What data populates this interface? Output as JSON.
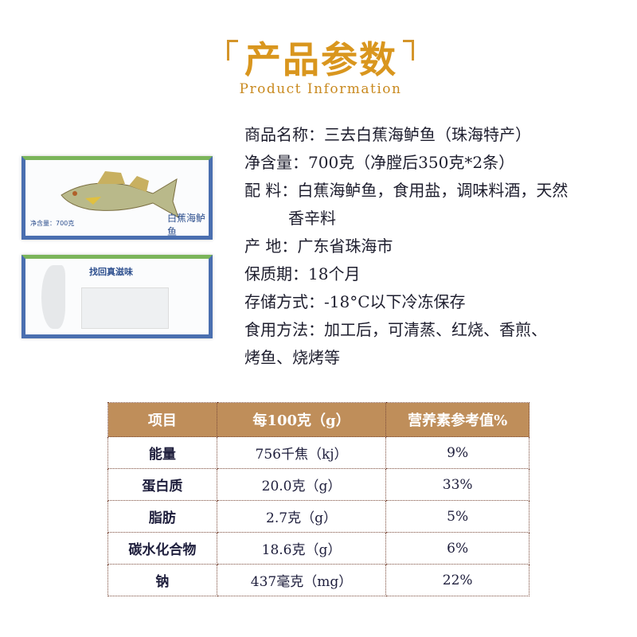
{
  "header": {
    "title": "产品参数",
    "subtitle": "Product Information"
  },
  "package": {
    "front_label": "白蕉海鲈鱼",
    "front_weight": "净含量：700克",
    "back_slogan": "找回真滋味"
  },
  "info": [
    {
      "text": "商品名称：三去白蕉海鲈鱼（珠海特产）"
    },
    {
      "text": "净含量：700克（净膛后350克*2条）"
    },
    {
      "text": "配 料：白蕉海鲈鱼，食用盐，调味料酒，天然"
    },
    {
      "text": "香辛料"
    },
    {
      "text": "产 地：广东省珠海市"
    },
    {
      "text": "保质期：18个月"
    },
    {
      "text": "存储方式：-18°C以下冷冻保存"
    },
    {
      "text": "食用方法：加工后，可清蒸、红烧、香煎、"
    },
    {
      "text": "烤鱼、烧烤等"
    }
  ],
  "nutrition": {
    "headers": [
      "项目",
      "每100克（g）",
      "营养素参考值%"
    ],
    "rows": [
      [
        "能量",
        "756千焦（kj）",
        "9%"
      ],
      [
        "蛋白质",
        "20.0克（g）",
        "33%"
      ],
      [
        "脂肪",
        "2.7克（g）",
        "5%"
      ],
      [
        "碳水化合物",
        "18.6克（g）",
        "6%"
      ],
      [
        "钠",
        "437毫克（mg）",
        "22%"
      ]
    ]
  },
  "colors": {
    "title": "#d9961e",
    "table_header": "#bf8e5a",
    "text": "#1e1e3c"
  }
}
